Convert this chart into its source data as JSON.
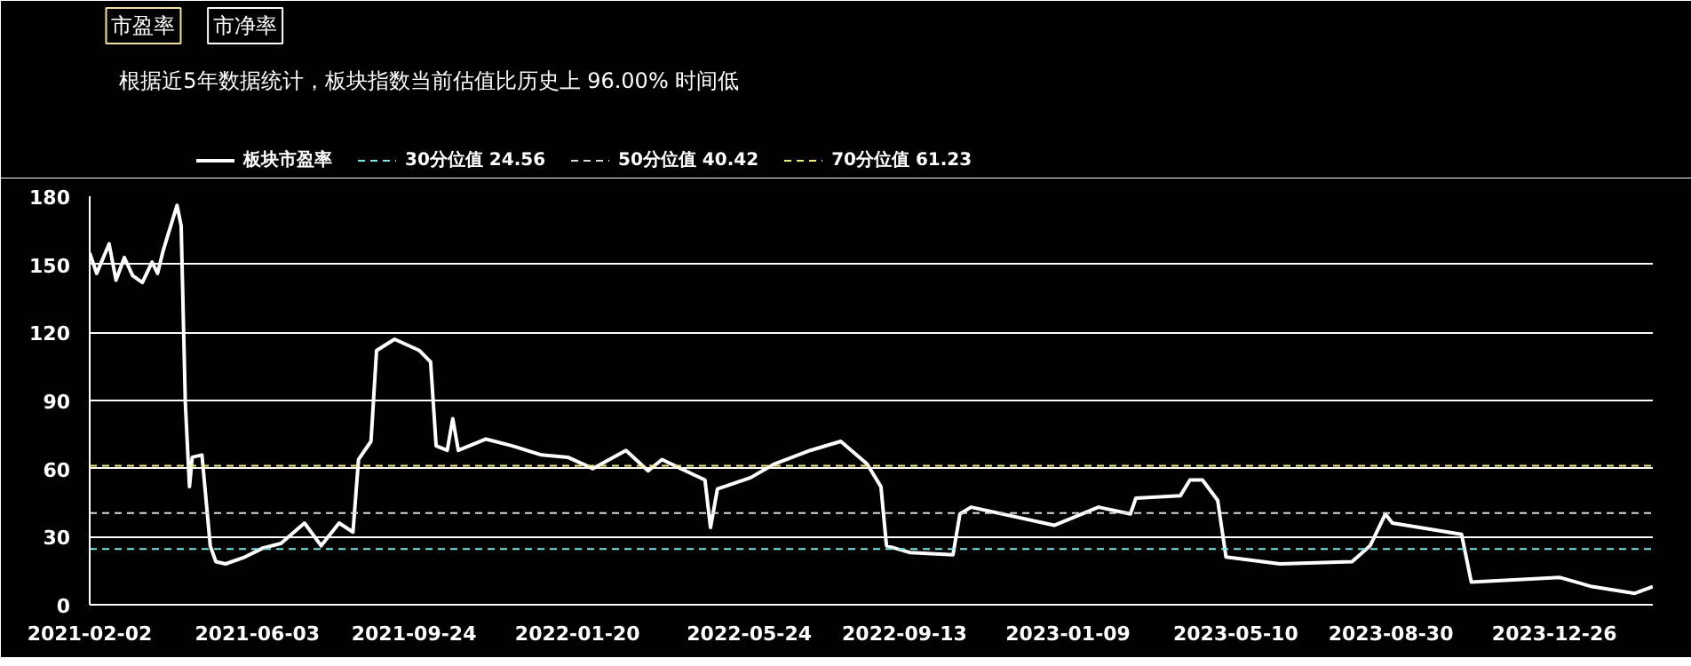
{
  "chart_data": {
    "type": "line",
    "subtitle": "根据近5年数据统计，板块指数当前估值比历史上 96.00% 时间低",
    "annotations": [
      "市盈率",
      "市净率"
    ],
    "x": [
      "2021-02-02",
      "2021-02-07",
      "2021-02-16",
      "2021-02-21",
      "2021-02-27",
      "2021-03-05",
      "2021-03-12",
      "2021-03-19",
      "2021-03-23",
      "2021-03-27",
      "2021-04-06",
      "2021-04-09",
      "2021-04-12",
      "2021-04-15",
      "2021-04-17",
      "2021-04-24",
      "2021-04-30",
      "2021-05-04",
      "2021-05-11",
      "2021-05-25",
      "2021-06-07",
      "2021-06-20",
      "2021-07-07",
      "2021-07-19",
      "2021-08-01",
      "2021-08-11",
      "2021-08-15",
      "2021-08-24",
      "2021-08-28",
      "2021-09-10",
      "2021-09-28",
      "2021-10-06",
      "2021-10-10",
      "2021-10-18",
      "2021-10-22",
      "2021-10-26",
      "2021-11-15",
      "2021-12-04",
      "2021-12-25",
      "2022-01-13",
      "2022-01-31",
      "2022-02-24",
      "2022-03-12",
      "2022-03-22",
      "2022-04-08",
      "2022-04-22",
      "2022-04-26",
      "2022-05-01",
      "2022-05-25",
      "2022-06-11",
      "2022-07-07",
      "2022-07-29",
      "2022-08-17",
      "2022-08-27",
      "2022-08-31",
      "2022-09-17",
      "2022-10-18",
      "2022-10-23",
      "2022-10-31",
      "2022-12-30",
      "2023-01-31",
      "2023-02-23",
      "2023-02-27",
      "2023-03-31",
      "2023-04-07",
      "2023-04-16",
      "2023-04-27",
      "2023-05-03",
      "2023-06-11",
      "2023-08-02",
      "2023-08-15",
      "2023-08-26",
      "2023-08-31",
      "2023-10-20",
      "2023-10-27",
      "2023-12-30",
      "2024-01-22",
      "2024-02-22",
      "2024-03-06"
    ],
    "series": [
      {
        "name": "板块市盈率",
        "color": "#ffffff",
        "values": [
          155,
          146,
          159,
          143,
          153,
          145,
          142,
          151,
          146,
          156,
          176,
          167,
          89,
          52,
          65,
          66,
          26,
          19,
          18,
          21,
          25,
          27,
          36,
          26,
          36,
          32,
          64,
          72,
          112,
          117,
          112,
          107,
          70,
          68,
          82,
          68,
          73,
          70,
          66,
          65,
          60,
          68,
          59,
          64,
          59,
          55,
          34,
          51,
          56,
          62,
          68,
          72,
          62,
          52,
          26,
          23,
          22,
          40,
          43,
          35,
          43,
          40,
          47,
          48,
          55,
          55,
          46,
          21,
          18,
          19,
          26,
          40,
          36,
          31,
          10,
          12,
          8,
          5,
          8
        ]
      }
    ],
    "ref_lines": [
      {
        "axis": "y",
        "value": 24.56,
        "label": "30分位值 24.56",
        "color": "#7fe3e3",
        "line_style": "dashed"
      },
      {
        "axis": "y",
        "value": 40.42,
        "label": "50分位值 40.42",
        "color": "#d9d9d9",
        "line_style": "dashed"
      },
      {
        "axis": "y",
        "value": 61.23,
        "label": "70分位值 61.23",
        "color": "#eeee88",
        "line_style": "dashed"
      }
    ],
    "xlim": [
      "2021-02-02",
      "2024-03-06"
    ],
    "xticks": [
      "2021-02-02",
      "2021-06-03",
      "2021-09-24",
      "2022-01-20",
      "2022-05-24",
      "2022-09-13",
      "2023-01-09",
      "2023-05-10",
      "2023-08-30",
      "2023-12-26"
    ],
    "ylim": [
      0,
      180
    ],
    "yticks": [
      0,
      30,
      60,
      90,
      120,
      150,
      180
    ],
    "grid": "y",
    "legend": "top",
    "marker": "none",
    "line_style": "solid"
  }
}
